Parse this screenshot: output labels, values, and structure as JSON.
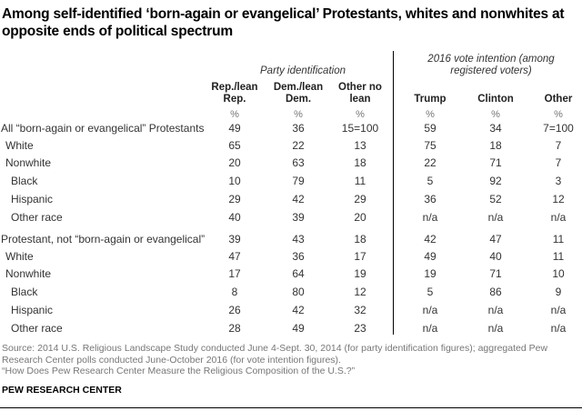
{
  "title": "Among self-identified ‘born-again or evangelical’ Protestants, whites and nonwhites at opposite ends of political spectrum",
  "groups": {
    "party": "Party identification",
    "vote": "2016 vote intention (among registered voters)"
  },
  "columns": [
    {
      "label": "Rep./lean Rep.",
      "unit": "%"
    },
    {
      "label": "Dem./lean Dem.",
      "unit": "%"
    },
    {
      "label": "Other no lean",
      "unit": "%"
    },
    {
      "label": "Trump",
      "unit": "%"
    },
    {
      "label": "Clinton",
      "unit": "%"
    },
    {
      "label": "Other",
      "unit": "%"
    }
  ],
  "chart_data": {
    "type": "table",
    "title": "Among self-identified ‘born-again or evangelical’ Protestants, whites and nonwhites at opposite ends of political spectrum",
    "rows": [
      {
        "label": "All “born-again or evangelical” Protestants",
        "indent": 0,
        "values": [
          "49",
          "36",
          "15=100",
          "59",
          "34",
          "7=100"
        ]
      },
      {
        "label": "White",
        "indent": 1,
        "values": [
          "65",
          "22",
          "13",
          "75",
          "18",
          "7"
        ]
      },
      {
        "label": "Nonwhite",
        "indent": 1,
        "values": [
          "20",
          "63",
          "18",
          "22",
          "71",
          "7"
        ]
      },
      {
        "label": "Black",
        "indent": 2,
        "values": [
          "10",
          "79",
          "11",
          "5",
          "92",
          "3"
        ]
      },
      {
        "label": "Hispanic",
        "indent": 2,
        "values": [
          "29",
          "42",
          "29",
          "36",
          "52",
          "12"
        ]
      },
      {
        "label": "Other race",
        "indent": 2,
        "values": [
          "40",
          "39",
          "20",
          "n/a",
          "n/a",
          "n/a"
        ]
      },
      {
        "label": "Protestant, not “born-again or evangelical”",
        "indent": 0,
        "values": [
          "39",
          "43",
          "18",
          "42",
          "47",
          "11"
        ]
      },
      {
        "label": "White",
        "indent": 1,
        "values": [
          "47",
          "36",
          "17",
          "49",
          "40",
          "11"
        ]
      },
      {
        "label": "Nonwhite",
        "indent": 1,
        "values": [
          "17",
          "64",
          "19",
          "19",
          "71",
          "10"
        ]
      },
      {
        "label": "Black",
        "indent": 2,
        "values": [
          "8",
          "80",
          "12",
          "5",
          "86",
          "9"
        ]
      },
      {
        "label": "Hispanic",
        "indent": 2,
        "values": [
          "26",
          "42",
          "32",
          "n/a",
          "n/a",
          "n/a"
        ]
      },
      {
        "label": "Other race",
        "indent": 2,
        "values": [
          "28",
          "49",
          "23",
          "n/a",
          "n/a",
          "n/a"
        ]
      }
    ]
  },
  "source": "Source: 2014 U.S. Religious Landscape Study conducted June 4-Sept. 30, 2014 (for party identification figures); aggregated Pew Research Center polls conducted June-October 2016 (for vote intention figures).",
  "note": "“How Does Pew Research Center Measure the Religious Composition of the U.S.?”",
  "brand": "PEW RESEARCH CENTER"
}
